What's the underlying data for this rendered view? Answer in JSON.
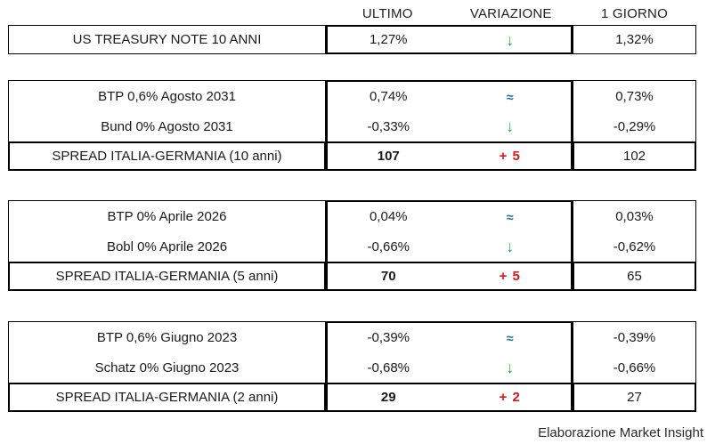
{
  "header": {
    "ultimo": "ULTIMO",
    "variazione": "VARIAZIONE",
    "giorno": "1 GIORNO"
  },
  "colors": {
    "green": "#2EA44F",
    "blue": "#1D6A96",
    "red": "#D41920"
  },
  "glyphs": {
    "down_arrow": "↓",
    "approx": "≈"
  },
  "treasury": {
    "label": "US TREASURY NOTE 10 ANNI",
    "ultimo": "1,27%",
    "giorno": "1,32%"
  },
  "section_10y": {
    "bond1": {
      "label": "BTP 0,6% Agosto 2031",
      "ultimo": "0,74%",
      "giorno": "0,73%"
    },
    "bond2": {
      "label": "Bund 0% Agosto 2031",
      "ultimo": "-0,33%",
      "giorno": "-0,29%"
    },
    "spread": {
      "label": "SPREAD ITALIA-GERMANIA (10 anni)",
      "ultimo": "107",
      "variation": "+ 5",
      "giorno": "102"
    }
  },
  "section_5y": {
    "bond1": {
      "label": "BTP 0% Aprile 2026",
      "ultimo": "0,04%",
      "giorno": "0,03%"
    },
    "bond2": {
      "label": "Bobl 0% Aprile 2026",
      "ultimo": "-0,66%",
      "giorno": "-0,62%"
    },
    "spread": {
      "label": "SPREAD ITALIA-GERMANIA (5 anni)",
      "ultimo": "70",
      "variation": "+ 5",
      "giorno": "65"
    }
  },
  "section_2y": {
    "bond1": {
      "label": "BTP 0,6% Giugno 2023",
      "ultimo": "-0,39%",
      "giorno": "-0,39%"
    },
    "bond2": {
      "label": "Schatz 0% Giugno 2023",
      "ultimo": "-0,68%",
      "giorno": "-0,66%"
    },
    "spread": {
      "label": "SPREAD ITALIA-GERMANIA (2 anni)",
      "ultimo": "29",
      "variation": "+ 2",
      "giorno": "27"
    }
  },
  "footer": {
    "credit": "Elaborazione Market Insight"
  }
}
